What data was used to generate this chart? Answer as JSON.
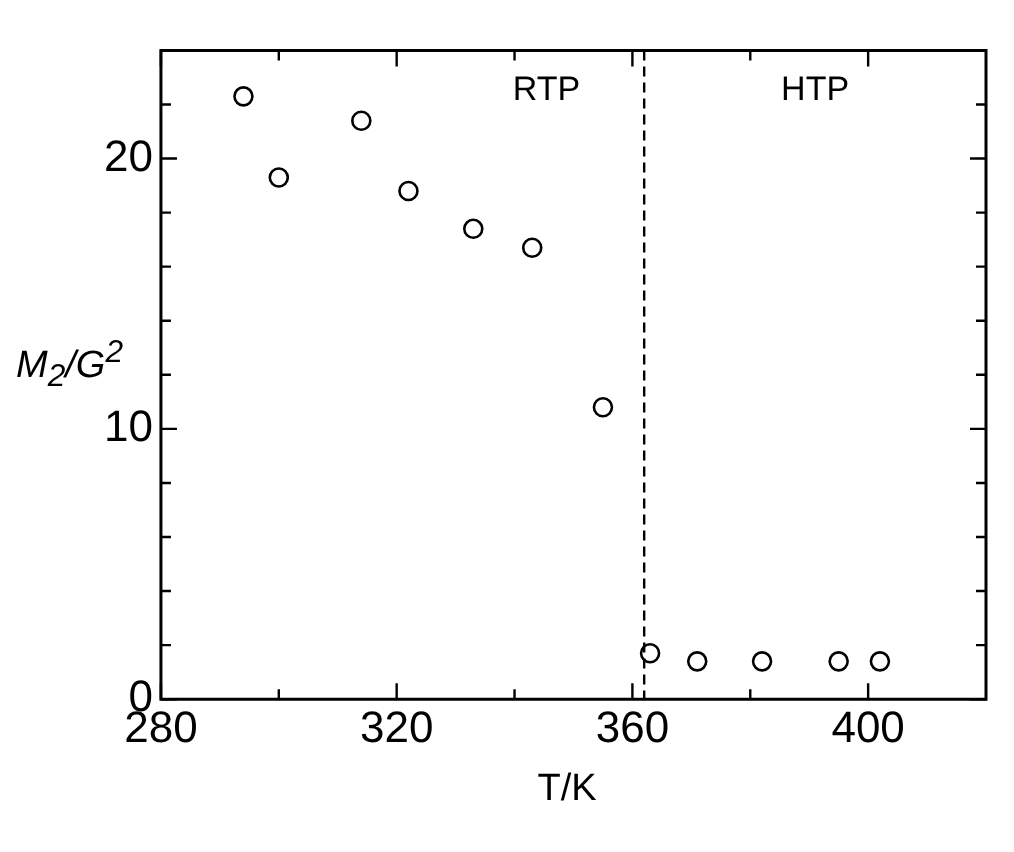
{
  "chart_data": {
    "type": "scatter",
    "xlabel": "T/K",
    "ylabel": "M$_{2}$/G$^{2}$",
    "x": [
      294,
      300,
      314,
      322,
      333,
      343,
      355,
      363,
      371,
      382,
      395,
      402
    ],
    "series": [
      {
        "color": "#000000",
        "values": [
          22.3,
          19.3,
          21.4,
          18.8,
          17.4,
          16.7,
          10.8,
          1.7,
          1.4,
          1.4,
          1.4,
          1.4
        ]
      }
    ],
    "marker": "circle",
    "xlim": [
      280,
      420
    ],
    "xticks": [
      280,
      {
        "value": 300,
        "label": null
      },
      320,
      {
        "value": 340,
        "label": null
      },
      360,
      {
        "value": 380,
        "label": null
      },
      400
    ],
    "ylim": [
      0,
      24
    ],
    "yticks": [
      0,
      {
        "value": 2,
        "label": null
      },
      {
        "value": 4,
        "label": null
      },
      {
        "value": 6,
        "label": null
      },
      {
        "value": 8,
        "label": null
      },
      10,
      {
        "value": 12,
        "label": null
      },
      {
        "value": 14,
        "label": null
      },
      {
        "value": 16,
        "label": null
      },
      {
        "value": 18,
        "label": null
      },
      20,
      {
        "value": 22,
        "label": null
      }
    ],
    "ref_lines": [
      {
        "axis": "x",
        "value": 362,
        "line_style": "dashed",
        "color": "#000000"
      }
    ],
    "annotations": [
      "RTP",
      "HTP"
    ],
    "grid": false,
    "legend": false
  }
}
